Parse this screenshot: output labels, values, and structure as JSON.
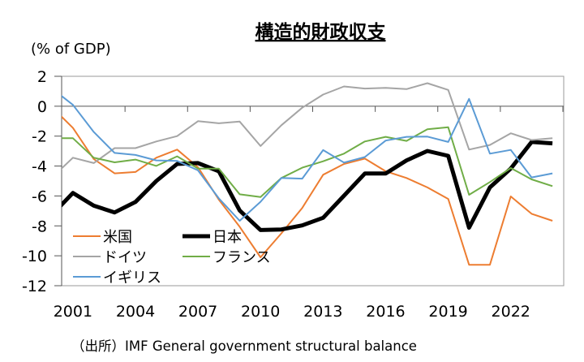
{
  "chart_data": {
    "type": "line",
    "title": "構造的財政収支",
    "ylabel": "(% of GDP)",
    "xlabel": "",
    "source": "（出所）IMF  General government structural balance",
    "ylim": [
      -12,
      2
    ],
    "yticks": [
      2,
      0,
      -2,
      -4,
      -6,
      -8,
      -10,
      -12
    ],
    "xlim": [
      2000.46,
      2024.54
    ],
    "xticklabels": [
      "2001",
      "2004",
      "2007",
      "2010",
      "2013",
      "2016",
      "2019",
      "2022"
    ],
    "legend_position": "bottom-left",
    "grid": false,
    "x": [
      2000,
      2001,
      2002,
      2003,
      2004,
      2005,
      2006,
      2007,
      2008,
      2009,
      2010,
      2011,
      2012,
      2013,
      2014,
      2015,
      2016,
      2017,
      2018,
      2019,
      2020,
      2021,
      2022,
      2023,
      2024
    ],
    "series": [
      {
        "name": "米国",
        "color": "#ED7D31",
        "width": 2,
        "values": [
          -0.07,
          -1.45,
          -3.53,
          -4.49,
          -4.4,
          -3.44,
          -2.9,
          -4.08,
          -6.25,
          -8.06,
          -10.1,
          -8.5,
          -6.8,
          -4.58,
          -3.86,
          -3.5,
          -4.35,
          -4.8,
          -5.43,
          -6.2,
          -10.6,
          -10.6,
          -6.03,
          -7.19,
          -7.66
        ]
      },
      {
        "name": "日本",
        "color": "#000000",
        "width": 5,
        "values": [
          -7.25,
          -5.8,
          -6.65,
          -7.1,
          -6.4,
          -5.0,
          -3.86,
          -3.8,
          -4.35,
          -6.97,
          -8.28,
          -8.24,
          -7.97,
          -7.46,
          -5.98,
          -4.5,
          -4.5,
          -3.62,
          -2.99,
          -3.32,
          -8.12,
          -5.43,
          -4.17,
          -2.39,
          -2.48
        ]
      },
      {
        "name": "ドイツ",
        "color": "#A5A5A5",
        "width": 2,
        "values": [
          -4.77,
          -3.44,
          -3.8,
          -2.8,
          -2.8,
          -2.36,
          -2.0,
          -1.0,
          -1.14,
          -1.03,
          -2.66,
          -1.27,
          -0.1,
          0.78,
          1.32,
          1.18,
          1.23,
          1.14,
          1.54,
          1.09,
          -2.9,
          -2.59,
          -1.81,
          -2.26,
          -2.14
        ]
      },
      {
        "name": "フランス",
        "color": "#70AD47",
        "width": 2,
        "values": [
          -2.14,
          -2.14,
          -3.44,
          -3.75,
          -3.57,
          -3.99,
          -3.35,
          -4.17,
          -4.17,
          -5.89,
          -6.07,
          -4.8,
          -4.11,
          -3.68,
          -3.17,
          -2.36,
          -2.05,
          -2.32,
          -1.54,
          -1.41,
          -5.92,
          -5.07,
          -4.13,
          -4.89,
          -5.34
        ]
      },
      {
        "name": "イギリス",
        "color": "#5B9BD5",
        "width": 2,
        "values": [
          1.18,
          0.09,
          -1.72,
          -3.12,
          -3.26,
          -3.62,
          -3.66,
          -4.29,
          -6.16,
          -7.66,
          -6.39,
          -4.8,
          -4.84,
          -2.93,
          -3.77,
          -3.4,
          -2.3,
          -2.05,
          -2.03,
          -2.39,
          0.49,
          -3.17,
          -2.92,
          -4.76,
          -4.49
        ]
      }
    ]
  }
}
